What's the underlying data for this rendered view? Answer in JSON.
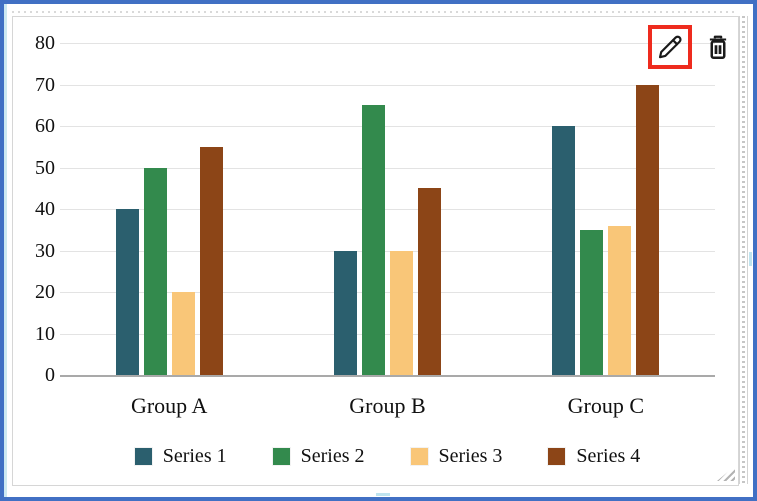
{
  "widget": {
    "selection_border_color": "#4170c4",
    "selection_inner_color": "#cde9f2",
    "toolbar": {
      "edit_button": {
        "icon": "pencil-icon",
        "highlight_color": "#ee2b1e"
      },
      "delete_button": {
        "icon": "trash-icon"
      }
    }
  },
  "chart_data": {
    "type": "bar",
    "title": "",
    "xlabel": "",
    "ylabel": "",
    "categories": [
      "Group A",
      "Group B",
      "Group C"
    ],
    "series": [
      {
        "name": "Series 1",
        "color": "#2b5f6e",
        "values": [
          40,
          30,
          60
        ]
      },
      {
        "name": "Series 2",
        "color": "#338a4d",
        "values": [
          50,
          65,
          35
        ]
      },
      {
        "name": "Series 3",
        "color": "#f9c678",
        "values": [
          20,
          30,
          36
        ]
      },
      {
        "name": "Series 4",
        "color": "#8c4517",
        "values": [
          55,
          45,
          70
        ]
      }
    ],
    "ylim": [
      0,
      80
    ],
    "yticks": [
      80,
      70,
      60,
      50,
      40,
      30,
      20,
      10,
      0
    ],
    "grid": true,
    "gridline_color": "#e3e3e3",
    "axis_color": "#a9a9a9",
    "legend_position": "bottom"
  }
}
